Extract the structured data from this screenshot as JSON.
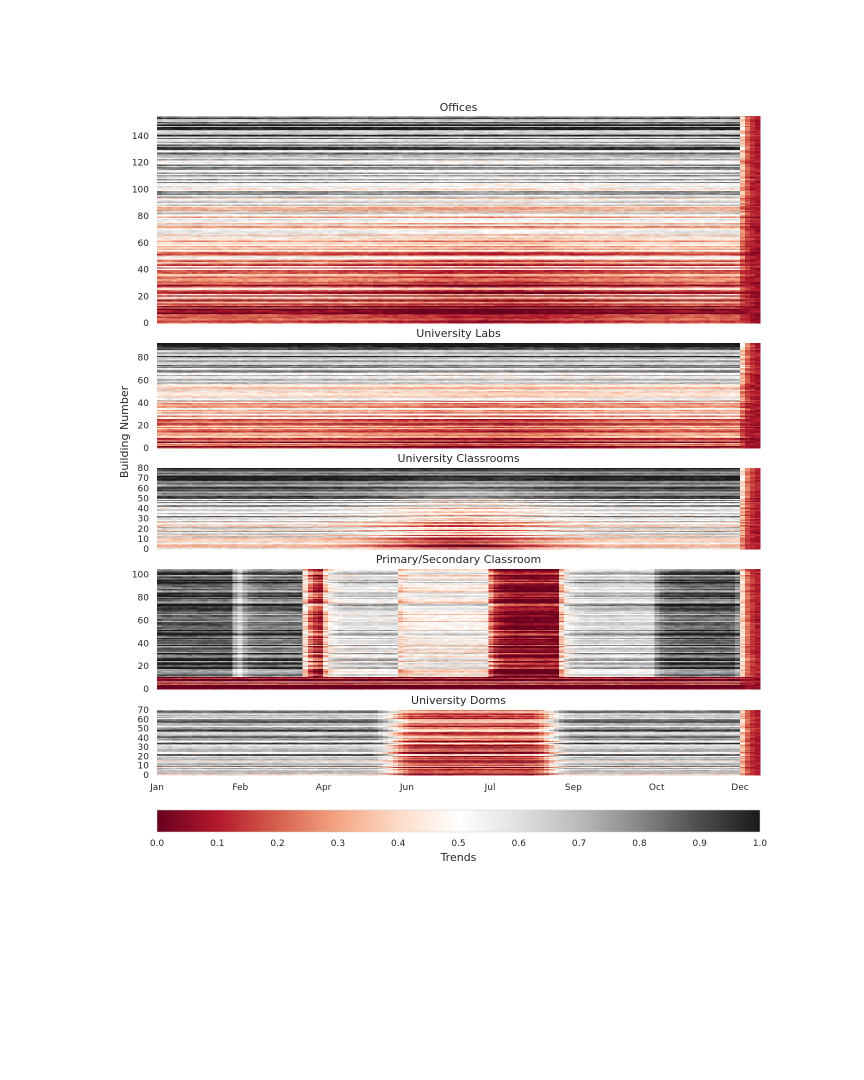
{
  "chart_data": {
    "type": "heatmap",
    "ylabel": "Building Number",
    "x_tick_labels": [
      "Jan",
      "Feb",
      "Apr",
      "Jun",
      "Jul",
      "Sep",
      "Oct",
      "Dec"
    ],
    "colorbar": {
      "label": "Trends",
      "range": [
        0.0,
        1.0
      ],
      "ticks": [
        "0.0",
        "0.1",
        "0.2",
        "0.3",
        "0.4",
        "0.5",
        "0.6",
        "0.7",
        "0.8",
        "0.9",
        "1.0"
      ],
      "colormap": "RdGy",
      "stops": [
        "#67001f",
        "#b2182b",
        "#d6604d",
        "#f4a582",
        "#fddbc7",
        "#ffffff",
        "#e0e0e0",
        "#bababa",
        "#878787",
        "#4d4d4d",
        "#1a1a1a"
      ]
    },
    "panels": [
      {
        "title": "Offices",
        "n_buildings": 155,
        "ylim": [
          0,
          155
        ],
        "yticks": [
          0,
          20,
          40,
          60,
          80,
          100,
          120,
          140
        ],
        "pattern": "gradient: high trend values (dark) for upper building numbers, low (red) for lower building numbers; red spike at the end of December"
      },
      {
        "title": "University Labs",
        "n_buildings": 93,
        "ylim": [
          0,
          93
        ],
        "yticks": [
          0,
          20,
          40,
          60,
          80
        ],
        "pattern": "gradient: dark for upper rows, red for lower rows; red spike at the end of December"
      },
      {
        "title": "University Classrooms",
        "n_buildings": 80,
        "ylim": [
          0,
          80
        ],
        "yticks": [
          0,
          10,
          20,
          30,
          40,
          50,
          60,
          70,
          80
        ],
        "pattern": "mostly dark/grey, reddish in summer for lower rows; red spike at the end of December"
      },
      {
        "title": "Primary/Secondary Classroom",
        "n_buildings": 105,
        "ylim": [
          0,
          105
        ],
        "yticks": [
          0,
          20,
          40,
          60,
          80,
          100
        ],
        "pattern": "vertical seasonal bands: dark in school terms, red during breaks, deep red in July-August summer holiday"
      },
      {
        "title": "University Dorms",
        "n_buildings": 70,
        "ylim": [
          0,
          70
        ],
        "yticks": [
          0,
          10,
          20,
          30,
          40,
          50,
          60,
          70
        ],
        "pattern": "dark in winter and spring, red in the summer months, dark again in autumn"
      }
    ]
  }
}
